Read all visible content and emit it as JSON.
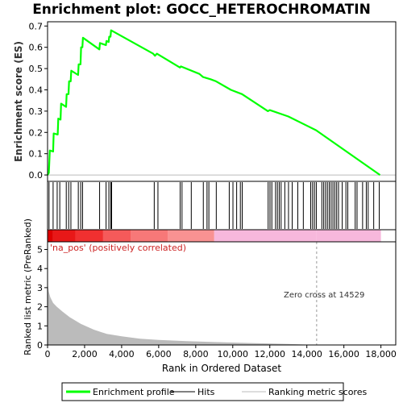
{
  "title": "Enrichment plot: GOCC_HETEROCHROMATIN",
  "legend": {
    "items": [
      {
        "label": "Enrichment profile",
        "color": "#00ff00"
      },
      {
        "label": "Hits",
        "color": "#000000"
      },
      {
        "label": "Ranking metric scores",
        "color": "#bbbbbb"
      }
    ]
  },
  "annotations": {
    "positive_label": "'na_pos' (positively correlated)",
    "zero_cross": "Zero cross at 14529"
  },
  "chart_data": [
    {
      "type": "line",
      "name": "enrichment-profile",
      "ylabel": "Enrichment score (ES)",
      "xlim": [
        0,
        18800
      ],
      "ylim": [
        -0.03,
        0.72
      ],
      "yticks": [
        0.0,
        0.1,
        0.2,
        0.3,
        0.4,
        0.5,
        0.6,
        0.7
      ],
      "ytick_labels": [
        "0.0",
        "0.1",
        "0.2",
        "0.3",
        "0.4",
        "0.5",
        "0.6",
        "0.7"
      ],
      "color": "#00ff00",
      "x": [
        0,
        70,
        120,
        300,
        330,
        550,
        580,
        700,
        730,
        1000,
        1030,
        1130,
        1160,
        1250,
        1280,
        1650,
        1680,
        1780,
        1810,
        1880,
        1910,
        2800,
        2830,
        3150,
        3180,
        3300,
        3330,
        3400,
        3430,
        5700,
        5800,
        5900,
        7150,
        7200,
        8200,
        8400,
        8800,
        9100,
        9900,
        10500,
        11900,
        12000,
        13000,
        14500,
        17950
      ],
      "y": [
        0.0,
        0.01,
        0.115,
        0.11,
        0.195,
        0.19,
        0.265,
        0.26,
        0.335,
        0.32,
        0.38,
        0.38,
        0.44,
        0.44,
        0.49,
        0.47,
        0.52,
        0.52,
        0.6,
        0.6,
        0.645,
        0.59,
        0.62,
        0.61,
        0.63,
        0.625,
        0.65,
        0.65,
        0.68,
        0.57,
        0.56,
        0.57,
        0.505,
        0.51,
        0.475,
        0.46,
        0.45,
        0.44,
        0.4,
        0.38,
        0.3,
        0.305,
        0.275,
        0.21,
        0.0
      ]
    },
    {
      "type": "scatter",
      "name": "hits",
      "hit_positions": [
        80,
        300,
        520,
        660,
        1010,
        1140,
        1260,
        1660,
        1790,
        1890,
        2810,
        3160,
        3310,
        3410,
        3460,
        5760,
        5960,
        7160,
        7260,
        7760,
        8410,
        8610,
        8710,
        9110,
        9810,
        10010,
        10210,
        10410,
        10510,
        11910,
        12010,
        12110,
        12310,
        12410,
        12510,
        12610,
        12810,
        13010,
        13210,
        13510,
        13810,
        14210,
        14310,
        14410,
        14510,
        14810,
        14910,
        15010,
        15110,
        15210,
        15310,
        15410,
        15510,
        15610,
        15710,
        15910,
        16110,
        16210,
        16610,
        16710,
        17010,
        17210,
        17310,
        17610,
        17910
      ]
    },
    {
      "type": "area",
      "name": "ranking-metric-scores",
      "xlabel": "Rank in Ordered Dataset",
      "ylabel": "Ranked list metric (PreRanked)",
      "xlim": [
        0,
        18800
      ],
      "ylim": [
        0,
        5.4
      ],
      "xticks": [
        0,
        2000,
        4000,
        6000,
        8000,
        10000,
        12000,
        14000,
        16000,
        18000
      ],
      "xtick_labels": [
        "0",
        "2,000",
        "4,000",
        "6,000",
        "8,000",
        "10,000",
        "12,000",
        "14,000",
        "16,000",
        "18,000"
      ],
      "yticks": [
        0,
        1,
        2,
        3,
        4,
        5
      ],
      "ytick_labels": [
        "0",
        "1",
        "2",
        "3",
        "4",
        "5"
      ],
      "color": "#bbbbbb",
      "x": [
        0,
        20,
        60,
        150,
        300,
        500,
        800,
        1200,
        1800,
        2500,
        3200,
        4000,
        5000,
        6000,
        7500,
        9000,
        11000,
        13000,
        14529,
        14600
      ],
      "y": [
        3.4,
        3.1,
        2.8,
        2.5,
        2.2,
        2.0,
        1.75,
        1.45,
        1.1,
        0.8,
        0.58,
        0.45,
        0.33,
        0.26,
        0.2,
        0.15,
        0.1,
        0.05,
        0.0,
        0.0
      ],
      "zero_cross": 14529
    }
  ]
}
